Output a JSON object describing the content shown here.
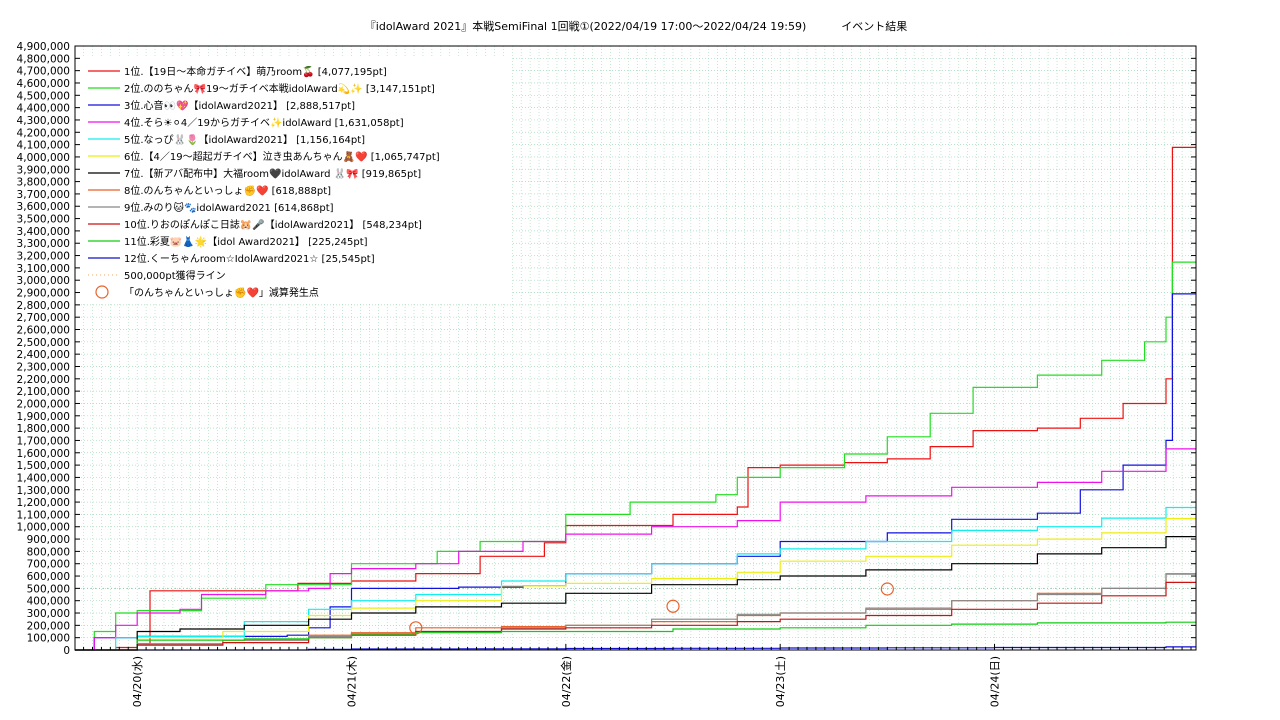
{
  "chart_data": {
    "type": "line",
    "title": "『idolAward 2021』本戦SemiFinal 1回戦①(2022/04/19 17:00～2022/04/24 19:59)          イベント結果",
    "xlabel": "",
    "ylabel": "",
    "x_ticks": [
      "04/20(水)",
      "04/21(木)",
      "04/22(金)",
      "04/23(土)",
      "04/24(日)"
    ],
    "y_ticks": [
      "0",
      "100,000",
      "200,000",
      "300,000",
      "400,000",
      "500,000",
      "600,000",
      "700,000",
      "800,000",
      "900,000",
      "1,000,000",
      "1,100,000",
      "1,200,000",
      "1,300,000",
      "1,400,000",
      "1,500,000",
      "1,600,000",
      "1,700,000",
      "1,800,000",
      "1,900,000",
      "2,000,000",
      "2,100,000",
      "2,200,000",
      "2,300,000",
      "2,400,000",
      "2,500,000",
      "2,600,000",
      "2,700,000",
      "2,800,000",
      "2,900,000",
      "3,000,000",
      "3,100,000",
      "3,200,000",
      "3,300,000",
      "3,400,000",
      "3,500,000",
      "3,600,000",
      "3,700,000",
      "3,800,000",
      "3,900,000",
      "4,000,000",
      "4,100,000",
      "4,200,000",
      "4,300,000",
      "4,400,000",
      "4,500,000",
      "4,600,000",
      "4,700,000",
      "4,800,000",
      "4,900,000"
    ],
    "ylim": [
      0,
      4900000
    ],
    "xlim": [
      -0.29,
      4.94
    ],
    "x_unit": "days after 04/20 00:00",
    "grid": true,
    "legend_position": "top-left",
    "threshold": {
      "name": "500,000pt獲得ライン",
      "value": 500000,
      "color": "#f4a460"
    },
    "markers": {
      "name": "「のんちゃんといっしょ✊❤️」減算発生点",
      "color": "#e8622a",
      "points": [
        [
          1.3,
          180000
        ],
        [
          2.5,
          355000
        ],
        [
          3.5,
          495000
        ]
      ]
    },
    "series": [
      {
        "name": "1位.【19日～本命ガチイベ】萌乃room🍒 [4,077,195pt]",
        "color": "#ee1111",
        "points": [
          [
            -0.29,
            0
          ],
          [
            -0.1,
            20000
          ],
          [
            0.0,
            50000
          ],
          [
            0.05,
            50000
          ],
          [
            0.06,
            480000
          ],
          [
            0.7,
            480000
          ],
          [
            0.75,
            540000
          ],
          [
            1.0,
            560000
          ],
          [
            1.3,
            620000
          ],
          [
            1.6,
            760000
          ],
          [
            1.9,
            870000
          ],
          [
            2.0,
            1010000
          ],
          [
            2.5,
            1100000
          ],
          [
            2.8,
            1160000
          ],
          [
            2.85,
            1480000
          ],
          [
            3.0,
            1500000
          ],
          [
            3.3,
            1520000
          ],
          [
            3.5,
            1550000
          ],
          [
            3.7,
            1650000
          ],
          [
            3.9,
            1780000
          ],
          [
            4.2,
            1800000
          ],
          [
            4.4,
            1880000
          ],
          [
            4.6,
            2000000
          ],
          [
            4.8,
            2200000
          ],
          [
            4.83,
            4077195
          ],
          [
            4.94,
            4077195
          ]
        ]
      },
      {
        "name": "2位.ののちゃん🎀19～ガチイベ本戦idolAward💫✨ [3,147,151pt]",
        "color": "#22dd22",
        "points": [
          [
            -0.29,
            0
          ],
          [
            -0.2,
            150000
          ],
          [
            -0.1,
            300000
          ],
          [
            0.0,
            320000
          ],
          [
            0.2,
            320000
          ],
          [
            0.3,
            420000
          ],
          [
            0.6,
            530000
          ],
          [
            1.0,
            700000
          ],
          [
            1.4,
            800000
          ],
          [
            1.6,
            880000
          ],
          [
            2.0,
            1100000
          ],
          [
            2.3,
            1200000
          ],
          [
            2.7,
            1260000
          ],
          [
            2.8,
            1400000
          ],
          [
            3.0,
            1480000
          ],
          [
            3.3,
            1590000
          ],
          [
            3.5,
            1730000
          ],
          [
            3.7,
            1920000
          ],
          [
            3.9,
            2130000
          ],
          [
            4.2,
            2230000
          ],
          [
            4.5,
            2350000
          ],
          [
            4.7,
            2500000
          ],
          [
            4.8,
            2700000
          ],
          [
            4.83,
            3147151
          ],
          [
            4.94,
            3147151
          ]
        ]
      },
      {
        "name": "3位.心音👀💖【idolAward2021】 [2,888,517pt]",
        "color": "#1111dd",
        "points": [
          [
            -0.29,
            0
          ],
          [
            -0.2,
            100000
          ],
          [
            0.0,
            110000
          ],
          [
            0.4,
            110000
          ],
          [
            0.7,
            120000
          ],
          [
            0.8,
            180000
          ],
          [
            0.9,
            350000
          ],
          [
            1.0,
            500000
          ],
          [
            1.5,
            510000
          ],
          [
            1.8,
            520000
          ],
          [
            2.0,
            620000
          ],
          [
            2.4,
            700000
          ],
          [
            2.8,
            760000
          ],
          [
            3.0,
            880000
          ],
          [
            3.5,
            950000
          ],
          [
            3.8,
            1060000
          ],
          [
            4.2,
            1110000
          ],
          [
            4.4,
            1300000
          ],
          [
            4.6,
            1500000
          ],
          [
            4.8,
            1700000
          ],
          [
            4.83,
            2888517
          ],
          [
            4.94,
            2888517
          ]
        ]
      },
      {
        "name": "4位.そら☀︎⚪︎4／19からガチイベ✨idolAward [1,631,058pt]",
        "color": "#ee11ee",
        "points": [
          [
            -0.29,
            0
          ],
          [
            -0.2,
            100000
          ],
          [
            -0.1,
            200000
          ],
          [
            0.0,
            300000
          ],
          [
            0.2,
            330000
          ],
          [
            0.3,
            450000
          ],
          [
            0.6,
            480000
          ],
          [
            0.8,
            500000
          ],
          [
            0.9,
            620000
          ],
          [
            1.0,
            660000
          ],
          [
            1.3,
            700000
          ],
          [
            1.5,
            800000
          ],
          [
            1.8,
            880000
          ],
          [
            2.0,
            940000
          ],
          [
            2.4,
            1000000
          ],
          [
            2.8,
            1050000
          ],
          [
            3.0,
            1200000
          ],
          [
            3.4,
            1250000
          ],
          [
            3.8,
            1320000
          ],
          [
            4.2,
            1360000
          ],
          [
            4.5,
            1450000
          ],
          [
            4.8,
            1631058
          ],
          [
            4.94,
            1631058
          ]
        ]
      },
      {
        "name": "5位.なっぴ🐰🌷【idolAward2021】 [1,156,164pt]",
        "color": "#11eeee",
        "points": [
          [
            -0.29,
            0
          ],
          [
            -0.1,
            100000
          ],
          [
            0.0,
            110000
          ],
          [
            0.4,
            110000
          ],
          [
            0.5,
            230000
          ],
          [
            0.8,
            330000
          ],
          [
            1.0,
            400000
          ],
          [
            1.3,
            450000
          ],
          [
            1.7,
            560000
          ],
          [
            2.0,
            620000
          ],
          [
            2.4,
            700000
          ],
          [
            2.8,
            780000
          ],
          [
            3.0,
            820000
          ],
          [
            3.4,
            880000
          ],
          [
            3.8,
            970000
          ],
          [
            4.2,
            1000000
          ],
          [
            4.5,
            1070000
          ],
          [
            4.8,
            1156164
          ],
          [
            4.94,
            1156164
          ]
        ]
      },
      {
        "name": "6位.【4／19～超起ガチイベ】泣き虫あんちゃん🧸❤️ [1,065,747pt]",
        "color": "#eeee11",
        "points": [
          [
            -0.29,
            0
          ],
          [
            0.0,
            100000
          ],
          [
            0.4,
            150000
          ],
          [
            0.8,
            280000
          ],
          [
            1.0,
            340000
          ],
          [
            1.3,
            400000
          ],
          [
            1.7,
            520000
          ],
          [
            2.0,
            540000
          ],
          [
            2.4,
            580000
          ],
          [
            2.8,
            630000
          ],
          [
            3.0,
            720000
          ],
          [
            3.4,
            760000
          ],
          [
            3.8,
            850000
          ],
          [
            4.2,
            900000
          ],
          [
            4.5,
            950000
          ],
          [
            4.8,
            1065747
          ],
          [
            4.94,
            1065747
          ]
        ]
      },
      {
        "name": "7位.【新アバ配布中】大福room🖤idolAward 🐰🎀 [919,865pt]",
        "color": "#000000",
        "points": [
          [
            -0.29,
            0
          ],
          [
            0.0,
            150000
          ],
          [
            0.2,
            170000
          ],
          [
            0.5,
            200000
          ],
          [
            0.8,
            250000
          ],
          [
            1.0,
            300000
          ],
          [
            1.3,
            350000
          ],
          [
            1.7,
            380000
          ],
          [
            2.0,
            460000
          ],
          [
            2.4,
            530000
          ],
          [
            2.8,
            570000
          ],
          [
            3.0,
            600000
          ],
          [
            3.4,
            650000
          ],
          [
            3.8,
            700000
          ],
          [
            4.2,
            780000
          ],
          [
            4.5,
            830000
          ],
          [
            4.8,
            919865
          ],
          [
            4.94,
            919865
          ]
        ]
      },
      {
        "name": "8位.のんちゃんといっしょ✊❤️ [618,888pt]",
        "color": "#e8622a",
        "points": [
          [
            -0.29,
            0
          ],
          [
            0.0,
            50000
          ],
          [
            0.4,
            80000
          ],
          [
            0.8,
            120000
          ],
          [
            1.0,
            140000
          ],
          [
            1.3,
            180000
          ],
          [
            1.7,
            190000
          ],
          [
            2.0,
            200000
          ],
          [
            2.4,
            230000
          ],
          [
            2.8,
            280000
          ],
          [
            3.0,
            300000
          ],
          [
            3.4,
            330000
          ],
          [
            3.8,
            400000
          ],
          [
            4.2,
            460000
          ],
          [
            4.5,
            500000
          ],
          [
            4.8,
            618888
          ],
          [
            4.94,
            618888
          ]
        ]
      },
      {
        "name": "9位.みのり🐱🐾idolAward2021 [614,868pt]",
        "color": "#888888",
        "points": [
          [
            -0.29,
            0
          ],
          [
            0.0,
            50000
          ],
          [
            0.4,
            80000
          ],
          [
            0.8,
            110000
          ],
          [
            1.0,
            130000
          ],
          [
            1.3,
            150000
          ],
          [
            1.7,
            180000
          ],
          [
            2.0,
            200000
          ],
          [
            2.4,
            250000
          ],
          [
            2.8,
            290000
          ],
          [
            3.0,
            300000
          ],
          [
            3.4,
            340000
          ],
          [
            3.8,
            400000
          ],
          [
            4.2,
            450000
          ],
          [
            4.5,
            500000
          ],
          [
            4.8,
            614868
          ],
          [
            4.94,
            614868
          ]
        ]
      },
      {
        "name": "10位.りおのぽんぽこ日誌🐹🎤【idolAward2021】 [548,234pt]",
        "color": "#cc1111",
        "points": [
          [
            -0.29,
            0
          ],
          [
            0.0,
            40000
          ],
          [
            0.4,
            60000
          ],
          [
            0.8,
            100000
          ],
          [
            1.0,
            120000
          ],
          [
            1.3,
            150000
          ],
          [
            1.7,
            170000
          ],
          [
            2.0,
            180000
          ],
          [
            2.4,
            200000
          ],
          [
            2.8,
            230000
          ],
          [
            3.0,
            250000
          ],
          [
            3.4,
            280000
          ],
          [
            3.8,
            330000
          ],
          [
            4.2,
            380000
          ],
          [
            4.5,
            440000
          ],
          [
            4.8,
            548234
          ],
          [
            4.94,
            548234
          ]
        ]
      },
      {
        "name": "11位.彩夏🐷👗🌟【idol Award2021】 [225,245pt]",
        "color": "#11cc11",
        "points": [
          [
            -0.29,
            0
          ],
          [
            0.0,
            80000
          ],
          [
            0.5,
            90000
          ],
          [
            0.8,
            100000
          ],
          [
            1.0,
            130000
          ],
          [
            1.3,
            140000
          ],
          [
            1.7,
            150000
          ],
          [
            2.0,
            150000
          ],
          [
            2.5,
            170000
          ],
          [
            3.0,
            180000
          ],
          [
            3.4,
            200000
          ],
          [
            3.8,
            210000
          ],
          [
            4.2,
            220000
          ],
          [
            4.8,
            225245
          ],
          [
            4.94,
            225245
          ]
        ]
      },
      {
        "name": "12位.くーちゃんroom☆IdolAward2021☆ [25,545pt]",
        "color": "#1111cc",
        "points": [
          [
            -0.29,
            0
          ],
          [
            0.5,
            0
          ],
          [
            0.8,
            5000
          ],
          [
            1.0,
            8000
          ],
          [
            1.5,
            10000
          ],
          [
            2.0,
            12000
          ],
          [
            2.5,
            14000
          ],
          [
            3.0,
            16000
          ],
          [
            3.5,
            18000
          ],
          [
            4.0,
            20000
          ],
          [
            4.8,
            25545
          ],
          [
            4.94,
            25545
          ]
        ]
      }
    ]
  }
}
